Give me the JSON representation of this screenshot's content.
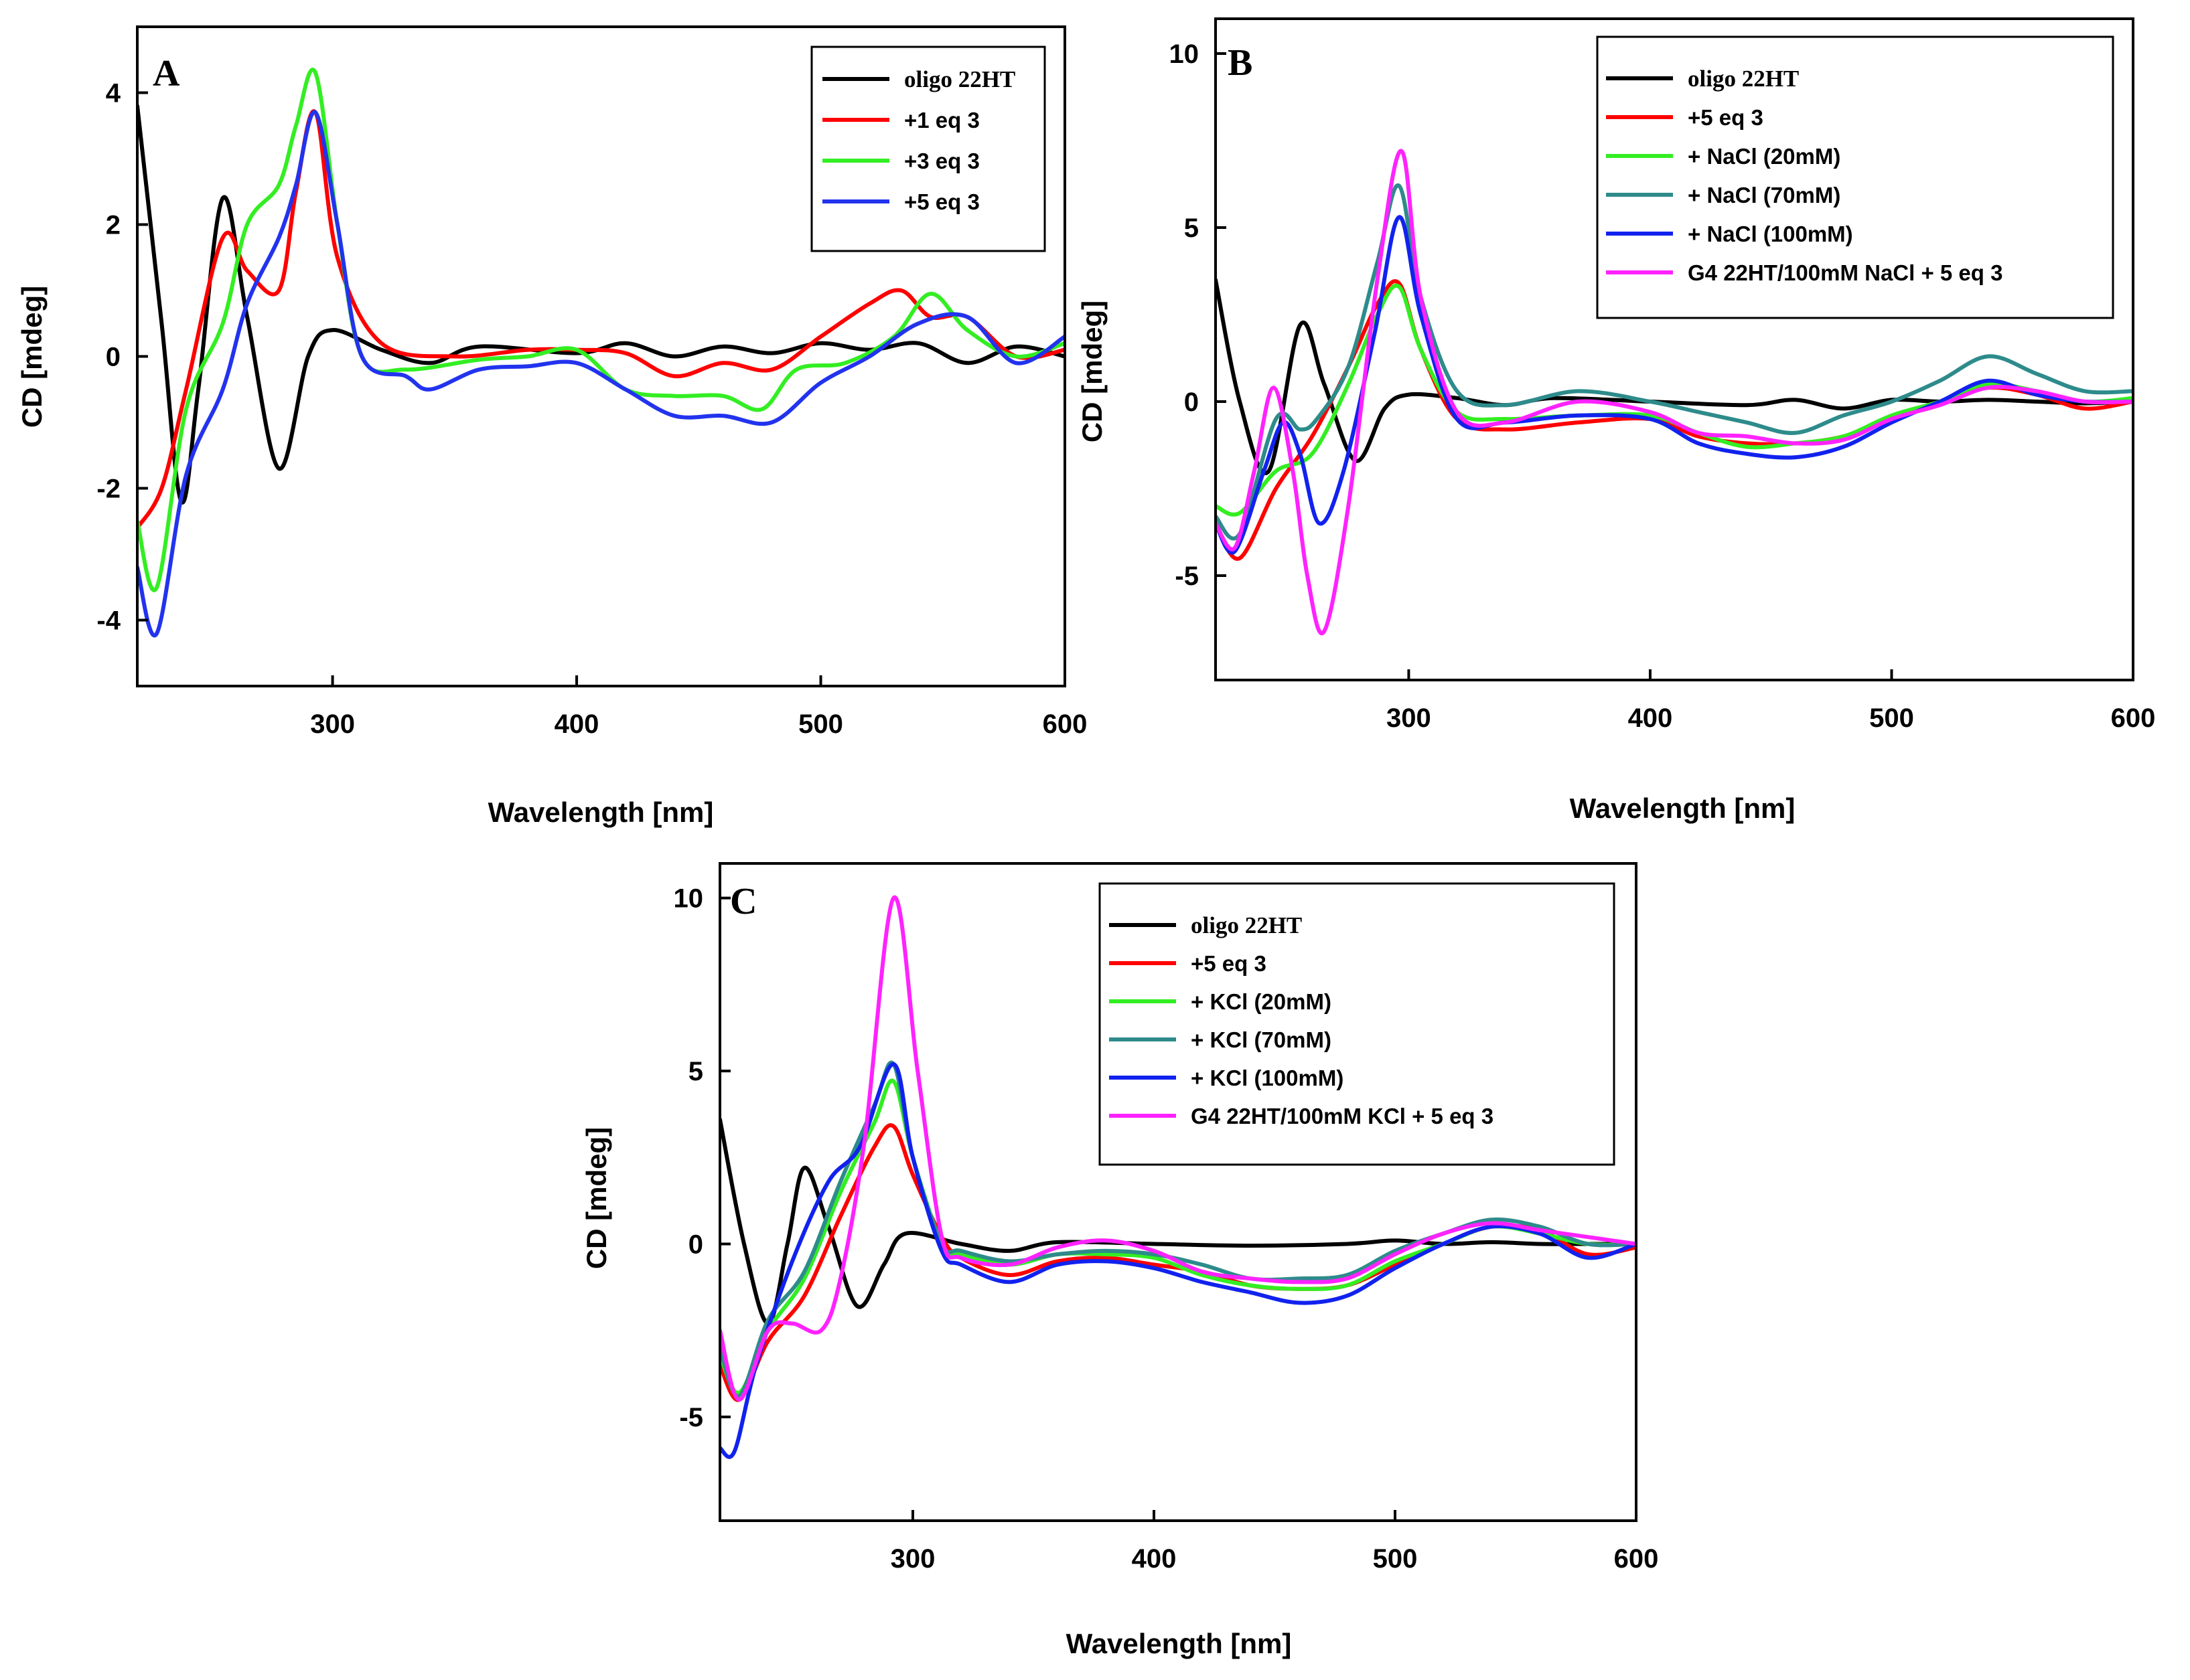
{
  "chart_data": [
    {
      "type": "line",
      "panel": "A",
      "xlabel": "Wavelength [nm]",
      "ylabel": "CD [mdeg]",
      "xlim": [
        220,
        600
      ],
      "ylim": [
        -5,
        5
      ],
      "xticks": [
        300,
        400,
        500,
        600
      ],
      "yticks": [
        -4,
        -2,
        0,
        2,
        4
      ],
      "legend_position": "top-right",
      "series": [
        {
          "name": "oligo 22HT",
          "color": "#000000",
          "serif": true,
          "x": [
            220,
            230,
            238,
            245,
            255,
            265,
            278,
            290,
            300,
            320,
            340,
            360,
            400,
            420,
            440,
            460,
            480,
            500,
            520,
            540,
            560,
            580,
            600
          ],
          "y": [
            3.8,
            0.5,
            -2.2,
            -0.5,
            2.4,
            0.6,
            -1.7,
            0.0,
            0.4,
            0.1,
            -0.1,
            0.15,
            0.05,
            0.2,
            0.0,
            0.15,
            0.05,
            0.2,
            0.1,
            0.2,
            -0.1,
            0.15,
            0.0
          ]
        },
        {
          "name": "+1 eq 3",
          "color": "#ff0000",
          "x": [
            220,
            230,
            240,
            255,
            265,
            278,
            285,
            293,
            302,
            320,
            350,
            380,
            400,
            420,
            440,
            460,
            480,
            500,
            520,
            533,
            545,
            560,
            580,
            600
          ],
          "y": [
            -2.6,
            -2.0,
            -0.5,
            1.8,
            1.3,
            1.0,
            2.5,
            3.7,
            1.5,
            0.2,
            0.0,
            0.1,
            0.1,
            0.05,
            -0.3,
            -0.1,
            -0.2,
            0.3,
            0.8,
            1.0,
            0.6,
            0.6,
            0.0,
            0.1
          ]
        },
        {
          "name": "+3 eq 3",
          "color": "#33ee22",
          "x": [
            220,
            228,
            240,
            255,
            265,
            278,
            285,
            293,
            302,
            312,
            330,
            360,
            380,
            400,
            420,
            440,
            460,
            476,
            490,
            510,
            530,
            545,
            560,
            580,
            600
          ],
          "y": [
            -2.5,
            -3.5,
            -0.8,
            0.5,
            2.0,
            2.6,
            3.5,
            4.3,
            2.0,
            0.0,
            -0.2,
            -0.05,
            0.0,
            0.1,
            -0.5,
            -0.6,
            -0.6,
            -0.8,
            -0.2,
            -0.1,
            0.3,
            0.95,
            0.4,
            0.0,
            0.2
          ]
        },
        {
          "name": "+5 eq 3",
          "color": "#2233ee",
          "x": [
            220,
            228,
            240,
            255,
            265,
            278,
            285,
            293,
            302,
            312,
            330,
            340,
            360,
            380,
            400,
            420,
            440,
            460,
            480,
            500,
            520,
            540,
            560,
            580,
            600
          ],
          "y": [
            -3.2,
            -4.2,
            -1.8,
            -0.5,
            0.8,
            1.8,
            2.6,
            3.7,
            2.0,
            0.0,
            -0.3,
            -0.5,
            -0.2,
            -0.15,
            -0.1,
            -0.5,
            -0.9,
            -0.9,
            -1.0,
            -0.4,
            0.0,
            0.5,
            0.6,
            -0.1,
            0.3
          ]
        }
      ]
    },
    {
      "type": "line",
      "panel": "B",
      "xlabel": "Wavelength [nm]",
      "ylabel": "CD [mdeg]",
      "xlim": [
        220,
        600
      ],
      "ylim": [
        -8,
        11
      ],
      "xticks": [
        300,
        400,
        500,
        600
      ],
      "yticks": [
        -5,
        0,
        5,
        10
      ],
      "legend_position": "top-right",
      "series": [
        {
          "name": "oligo 22HT",
          "color": "#000000",
          "serif": true,
          "x": [
            220,
            230,
            242,
            255,
            265,
            278,
            290,
            300,
            320,
            340,
            360,
            400,
            440,
            460,
            480,
            500,
            520,
            540,
            560,
            580,
            600
          ],
          "y": [
            3.5,
            0.0,
            -2.0,
            2.2,
            0.5,
            -1.7,
            -0.2,
            0.2,
            0.1,
            -0.1,
            0.1,
            0.0,
            -0.1,
            0.05,
            -0.2,
            0.05,
            0.0,
            0.05,
            0.0,
            -0.05,
            0.0
          ]
        },
        {
          "name": "+5 eq 3",
          "color": "#ff0000",
          "x": [
            220,
            230,
            245,
            260,
            275,
            287,
            296,
            305,
            320,
            340,
            370,
            400,
            420,
            440,
            460,
            480,
            500,
            520,
            540,
            560,
            580,
            600
          ],
          "y": [
            -3.5,
            -4.5,
            -2.5,
            -1.0,
            1.0,
            2.8,
            3.4,
            1.5,
            -0.5,
            -0.8,
            -0.6,
            -0.5,
            -1.0,
            -1.2,
            -1.2,
            -1.0,
            -0.5,
            0.0,
            0.4,
            0.2,
            -0.2,
            0.0
          ]
        },
        {
          "name": "+ NaCl (20mM)",
          "color": "#33ee22",
          "x": [
            220,
            230,
            245,
            260,
            275,
            287,
            296,
            305,
            320,
            340,
            370,
            400,
            420,
            440,
            460,
            480,
            500,
            520,
            540,
            560,
            580,
            600
          ],
          "y": [
            -3.0,
            -3.2,
            -2.0,
            -1.5,
            0.5,
            2.5,
            3.3,
            1.5,
            -0.3,
            -0.5,
            -0.4,
            -0.4,
            -0.9,
            -1.3,
            -1.2,
            -1.0,
            -0.4,
            0.0,
            0.5,
            0.3,
            0.0,
            0.1
          ]
        },
        {
          "name": "+ NaCl (70mM)",
          "color": "#2e8b8b",
          "x": [
            220,
            230,
            245,
            255,
            262,
            275,
            287,
            296,
            305,
            320,
            340,
            370,
            400,
            420,
            440,
            460,
            480,
            500,
            520,
            540,
            560,
            580,
            600
          ],
          "y": [
            -3.3,
            -3.8,
            -0.5,
            -0.8,
            -0.5,
            1.0,
            4.0,
            6.2,
            3.0,
            0.3,
            -0.1,
            0.3,
            0.0,
            -0.3,
            -0.6,
            -0.9,
            -0.4,
            0.0,
            0.6,
            1.3,
            0.8,
            0.3,
            0.3
          ]
        },
        {
          "name": "+ NaCl (100mM)",
          "color": "#1122ee",
          "x": [
            220,
            228,
            240,
            248,
            255,
            263,
            273,
            286,
            296,
            305,
            320,
            340,
            370,
            400,
            420,
            440,
            460,
            480,
            500,
            520,
            540,
            560,
            580,
            600
          ],
          "y": [
            -3.5,
            -4.3,
            -2.0,
            -0.6,
            -1.5,
            -3.5,
            -2.0,
            2.0,
            5.3,
            2.5,
            -0.5,
            -0.6,
            -0.4,
            -0.5,
            -1.2,
            -1.5,
            -1.6,
            -1.3,
            -0.6,
            0.0,
            0.6,
            0.2,
            0.0,
            0.0
          ]
        },
        {
          "name": "G4 22HT/100mM NaCl + 5 eq 3",
          "color": "#ff22ff",
          "x": [
            220,
            228,
            236,
            244,
            252,
            258,
            265,
            275,
            287,
            297,
            305,
            320,
            340,
            370,
            400,
            420,
            440,
            460,
            480,
            500,
            520,
            540,
            560,
            580,
            600
          ],
          "y": [
            -3.5,
            -4.2,
            -2.0,
            0.4,
            -2.0,
            -5.0,
            -6.6,
            -3.0,
            3.5,
            7.2,
            3.0,
            -0.3,
            -0.6,
            0.0,
            -0.3,
            -0.9,
            -1.0,
            -1.2,
            -1.1,
            -0.5,
            -0.1,
            0.4,
            0.3,
            0.0,
            0.0
          ]
        }
      ]
    },
    {
      "type": "line",
      "panel": "C",
      "xlabel": "Wavelength [nm]",
      "ylabel": "CD [mdeg]",
      "xlim": [
        220,
        600
      ],
      "ylim": [
        -8,
        11
      ],
      "xticks": [
        300,
        400,
        500,
        600
      ],
      "yticks": [
        -5,
        0,
        5,
        10
      ],
      "legend_position": "top-right",
      "series": [
        {
          "name": "oligo 22HT",
          "color": "#000000",
          "serif": true,
          "x": [
            220,
            230,
            240,
            248,
            255,
            265,
            277,
            288,
            297,
            320,
            340,
            360,
            400,
            440,
            480,
            500,
            520,
            540,
            560,
            580,
            600
          ],
          "y": [
            3.6,
            0.0,
            -2.3,
            0.0,
            2.2,
            0.5,
            -1.8,
            -0.6,
            0.3,
            0.0,
            -0.2,
            0.05,
            0.0,
            -0.05,
            0.0,
            0.1,
            0.0,
            0.05,
            0.0,
            0.0,
            0.0
          ]
        },
        {
          "name": "+5 eq 3",
          "color": "#ff0000",
          "x": [
            220,
            228,
            240,
            255,
            270,
            284,
            292,
            300,
            312,
            320,
            340,
            360,
            380,
            400,
            420,
            440,
            460,
            480,
            500,
            520,
            540,
            560,
            580,
            600
          ],
          "y": [
            -3.5,
            -4.5,
            -2.8,
            -1.5,
            0.8,
            2.8,
            3.4,
            2.0,
            0.2,
            -0.4,
            -0.9,
            -0.5,
            -0.4,
            -0.6,
            -0.8,
            -1.2,
            -1.3,
            -1.2,
            -0.6,
            0.0,
            0.5,
            0.4,
            -0.3,
            -0.1
          ]
        },
        {
          "name": "+ KCl (20mM)",
          "color": "#33ee22",
          "x": [
            220,
            228,
            240,
            255,
            270,
            284,
            292,
            300,
            312,
            320,
            340,
            360,
            380,
            400,
            420,
            440,
            460,
            480,
            500,
            520,
            540,
            560,
            580,
            600
          ],
          "y": [
            -3.2,
            -4.3,
            -2.5,
            -1.0,
            1.5,
            3.5,
            4.7,
            2.5,
            0.0,
            -0.3,
            -0.6,
            -0.3,
            -0.3,
            -0.4,
            -0.9,
            -1.2,
            -1.3,
            -1.2,
            -0.5,
            0.0,
            0.5,
            0.3,
            0.0,
            0.0
          ]
        },
        {
          "name": "+ KCl (70mM)",
          "color": "#2e8b8b",
          "x": [
            220,
            228,
            240,
            255,
            270,
            284,
            292,
            300,
            312,
            320,
            340,
            360,
            380,
            400,
            420,
            440,
            460,
            480,
            500,
            520,
            540,
            560,
            580,
            600
          ],
          "y": [
            -3.0,
            -4.4,
            -2.2,
            -0.8,
            1.8,
            4.0,
            5.2,
            2.5,
            0.0,
            -0.2,
            -0.5,
            -0.3,
            -0.2,
            -0.3,
            -0.6,
            -1.0,
            -1.0,
            -0.9,
            -0.2,
            0.3,
            0.7,
            0.5,
            0.0,
            0.0
          ]
        },
        {
          "name": "+ KCl (100mM)",
          "color": "#1122ee",
          "x": [
            220,
            226,
            235,
            250,
            265,
            278,
            292,
            300,
            312,
            320,
            340,
            360,
            380,
            400,
            420,
            440,
            460,
            480,
            500,
            520,
            540,
            560,
            580,
            600
          ],
          "y": [
            -5.9,
            -6.0,
            -3.5,
            -0.5,
            1.8,
            2.8,
            5.2,
            2.5,
            -0.2,
            -0.6,
            -1.1,
            -0.6,
            -0.5,
            -0.7,
            -1.1,
            -1.4,
            -1.7,
            -1.5,
            -0.7,
            0.0,
            0.5,
            0.3,
            -0.4,
            0.0
          ]
        },
        {
          "name": "G4 22HT/100mM KCl + 5 eq 3",
          "color": "#ff22ff",
          "x": [
            220,
            228,
            240,
            250,
            262,
            270,
            280,
            292,
            302,
            312,
            320,
            340,
            360,
            380,
            400,
            420,
            440,
            460,
            480,
            500,
            520,
            540,
            560,
            580,
            600
          ],
          "y": [
            -2.5,
            -4.5,
            -2.5,
            -2.3,
            -2.5,
            -1.0,
            3.0,
            10.0,
            5.0,
            0.2,
            -0.4,
            -0.6,
            -0.1,
            0.1,
            -0.2,
            -0.8,
            -1.0,
            -1.1,
            -1.0,
            -0.3,
            0.3,
            0.6,
            0.4,
            0.2,
            0.0
          ]
        }
      ]
    }
  ]
}
